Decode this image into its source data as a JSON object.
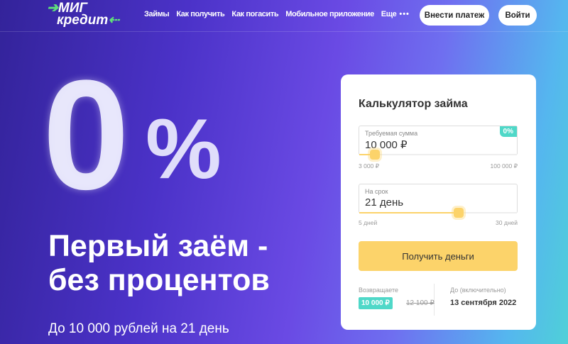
{
  "header": {
    "logo_line1": "МИГ",
    "logo_line2": "кредит",
    "nav": [
      "Займы",
      "Как получить",
      "Как погасить",
      "Мобильное приложение",
      "Еще"
    ],
    "more_icon": "dots-icon",
    "pay_button": "Внести платеж",
    "login_button": "Войти"
  },
  "hero": {
    "zero": "0",
    "percent": "%",
    "title_line1": "Первый заём -",
    "title_line2": "без процентов",
    "subtitle": "До 10 000 рублей на 21 день"
  },
  "calculator": {
    "title": "Калькулятор займа",
    "amount": {
      "label": "Требуемая сумма",
      "value": "10 000 ₽",
      "badge": "0%",
      "min": "3 000 ₽",
      "max": "100 000 ₽",
      "fraction": 0.1
    },
    "term": {
      "label": "На срок",
      "value": "21 день",
      "min": "5 дней",
      "max": "30 дней",
      "fraction": 0.63
    },
    "submit": "Получить деньги",
    "return_label": "Возвращаете",
    "return_value": "10 000 ₽",
    "return_old": "12 100 ₽",
    "until_label": "До (включительно)",
    "until_value": "13 сентября 2022",
    "accent": "#fcd36a",
    "badge_color": "#4fd8c8"
  }
}
